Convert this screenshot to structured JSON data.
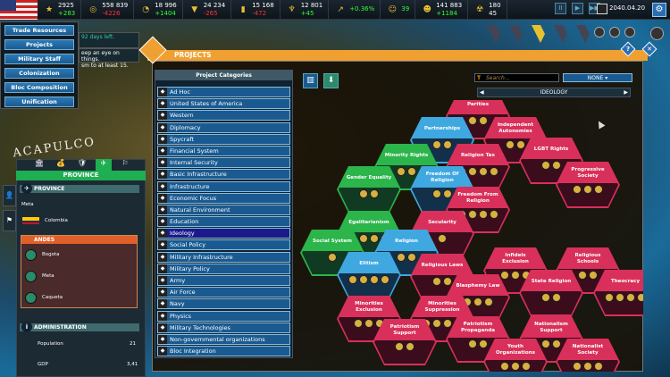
{
  "topbar": {
    "resources": [
      {
        "icon": "star-icon",
        "value": "2925",
        "delta": "+283",
        "sign": "pos"
      },
      {
        "icon": "gold-coins-icon",
        "value": "558 839",
        "delta": "-4226",
        "sign": "neg"
      },
      {
        "icon": "cycle-icon",
        "value": "18 996",
        "delta": "+1404",
        "sign": "pos"
      },
      {
        "icon": "anvil-icon",
        "value": "24 234",
        "delta": "-265",
        "sign": "neg"
      },
      {
        "icon": "barrel-icon",
        "value": "15 168",
        "delta": "-472",
        "sign": "neg"
      },
      {
        "icon": "crystals-icon",
        "value": "12 801",
        "delta": "+45",
        "sign": "pos"
      },
      {
        "icon": "growth-chart-icon",
        "value": "+0.36%",
        "delta": "",
        "sign": "pos"
      },
      {
        "icon": "people-icon",
        "value": "39",
        "delta": "",
        "sign": "pos"
      },
      {
        "icon": "population-icon",
        "value": "141 883",
        "delta": "+1184",
        "sign": "pos"
      },
      {
        "icon": "nuclear-icon",
        "value": "180",
        "delta": "45",
        "sign": "plain"
      }
    ],
    "date": "2040.04.20"
  },
  "side_menu": [
    "Trade Resources",
    "Projects",
    "Military Staff",
    "Colonization",
    "Bloc Composition",
    "Unification"
  ],
  "notice": {
    "days": "92",
    "days_label": "days left.",
    "line1": "eep an eye on things.",
    "line2": "sm to at least 15."
  },
  "map_label": "ACAPULCO",
  "province": {
    "header": "PROVINCE",
    "section": "PROVINCE",
    "name": "Meta",
    "country": "Colombia",
    "region": "ANDES",
    "region_items": [
      "Bogota",
      "Meta",
      "Caqueta"
    ],
    "admin_section": "ADMINISTRATION",
    "stats": [
      {
        "label": "Population",
        "value": "21"
      },
      {
        "label": "GDP",
        "value": "3,41"
      }
    ]
  },
  "projects": {
    "title": "PROJECTS",
    "categories_title": "Project Categories",
    "categories": [
      "Ad Hoc",
      "United States of America",
      "Western",
      "Diplomacy",
      "Spycraft",
      "Financial System",
      "Internal Security",
      "Basic Infrastructure",
      "Infrastructure",
      "Economic Focus",
      "Natural Environment",
      "Education",
      "Ideology",
      "Social Policy",
      "Military Infrastructure",
      "Military Policy",
      "Army",
      "Air Force",
      "Navy",
      "Physics",
      "Military Technologies",
      "Non-governmental organizations",
      "Bloc Integration"
    ],
    "selected_category": "Ideology",
    "search_placeholder": "Search...",
    "filter": "NONE",
    "current_tree": "IDEOLOGY",
    "colors": {
      "red": "#d8305a",
      "green": "#2bb54a",
      "blue": "#3fa8e0"
    },
    "nodes": [
      {
        "name": "Parities",
        "color": "red",
        "icons": 2
      },
      {
        "name": "Independent Autonomies",
        "color": "red",
        "icons": 2
      },
      {
        "name": "Partnerships",
        "color": "blue",
        "icons": 2
      },
      {
        "name": "Minority Rights",
        "color": "green",
        "icons": 2
      },
      {
        "name": "Religion Tax",
        "color": "red",
        "icons": 4
      },
      {
        "name": "LGBT Rights",
        "color": "red",
        "icons": 2
      },
      {
        "name": "Progressive Society",
        "color": "red",
        "icons": 3
      },
      {
        "name": "Gender Equality",
        "color": "green",
        "icons": 2
      },
      {
        "name": "Freedom Of Religion",
        "color": "blue",
        "icons": 2
      },
      {
        "name": "Freedom From Religion",
        "color": "red",
        "icons": 4
      },
      {
        "name": "Egalitarianism",
        "color": "green",
        "icons": 4
      },
      {
        "name": "Secularity",
        "color": "red",
        "icons": 1
      },
      {
        "name": "Social System",
        "color": "green",
        "icons": 1
      },
      {
        "name": "Religion",
        "color": "blue",
        "icons": 2
      },
      {
        "name": "Elitism",
        "color": "blue",
        "icons": 4
      },
      {
        "name": "Religious Laws",
        "color": "red",
        "icons": 2
      },
      {
        "name": "Infidels Exclusion",
        "color": "red",
        "icons": 3
      },
      {
        "name": "Religious Schools",
        "color": "red",
        "icons": 2
      },
      {
        "name": "Blasphemy Law",
        "color": "red",
        "icons": 3
      },
      {
        "name": "State Religion",
        "color": "red",
        "icons": 2
      },
      {
        "name": "Theocracy",
        "color": "red",
        "icons": 4
      },
      {
        "name": "Minorities Exclusion",
        "color": "red",
        "icons": 3
      },
      {
        "name": "Minorities Suppression",
        "color": "red",
        "icons": 4
      },
      {
        "name": "Patriotism Support",
        "color": "red",
        "icons": 2
      },
      {
        "name": "Patriotism Propaganda",
        "color": "red",
        "icons": 2
      },
      {
        "name": "Nationalism Support",
        "color": "red",
        "icons": 2
      },
      {
        "name": "Youth Organizations",
        "color": "red",
        "icons": 3
      },
      {
        "name": "Nationalist Society",
        "color": "red",
        "icons": 3
      }
    ]
  }
}
